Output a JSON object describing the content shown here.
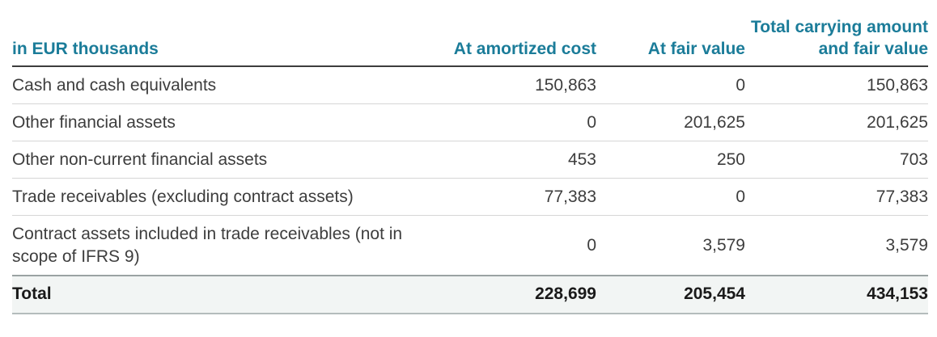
{
  "colors": {
    "accent_teal": "#1b7c99",
    "body_text": "#3d3d3d",
    "total_row_background": "#f2f5f4",
    "header_rule": "#3d3d3d",
    "row_rule": "#d6d6d6"
  },
  "table": {
    "unit_header": "in EUR thousands",
    "columns": [
      "At amortized cost",
      "At fair value",
      "Total carrying amount and fair value"
    ],
    "rows": [
      {
        "label": "Cash and cash equivalents",
        "amortized_cost": "150,863",
        "fair_value": "0",
        "total": "150,863"
      },
      {
        "label": "Other financial assets",
        "amortized_cost": "0",
        "fair_value": "201,625",
        "total": "201,625"
      },
      {
        "label": "Other non-current financial assets",
        "amortized_cost": "453",
        "fair_value": "250",
        "total": "703"
      },
      {
        "label": "Trade receivables (excluding contract assets)",
        "amortized_cost": "77,383",
        "fair_value": "0",
        "total": "77,383"
      },
      {
        "label": "Contract assets included in trade receivables (not in scope of IFRS 9)",
        "amortized_cost": "0",
        "fair_value": "3,579",
        "total": "3,579"
      }
    ],
    "total_row": {
      "label": "Total",
      "amortized_cost": "228,699",
      "fair_value": "205,454",
      "total": "434,153"
    }
  }
}
